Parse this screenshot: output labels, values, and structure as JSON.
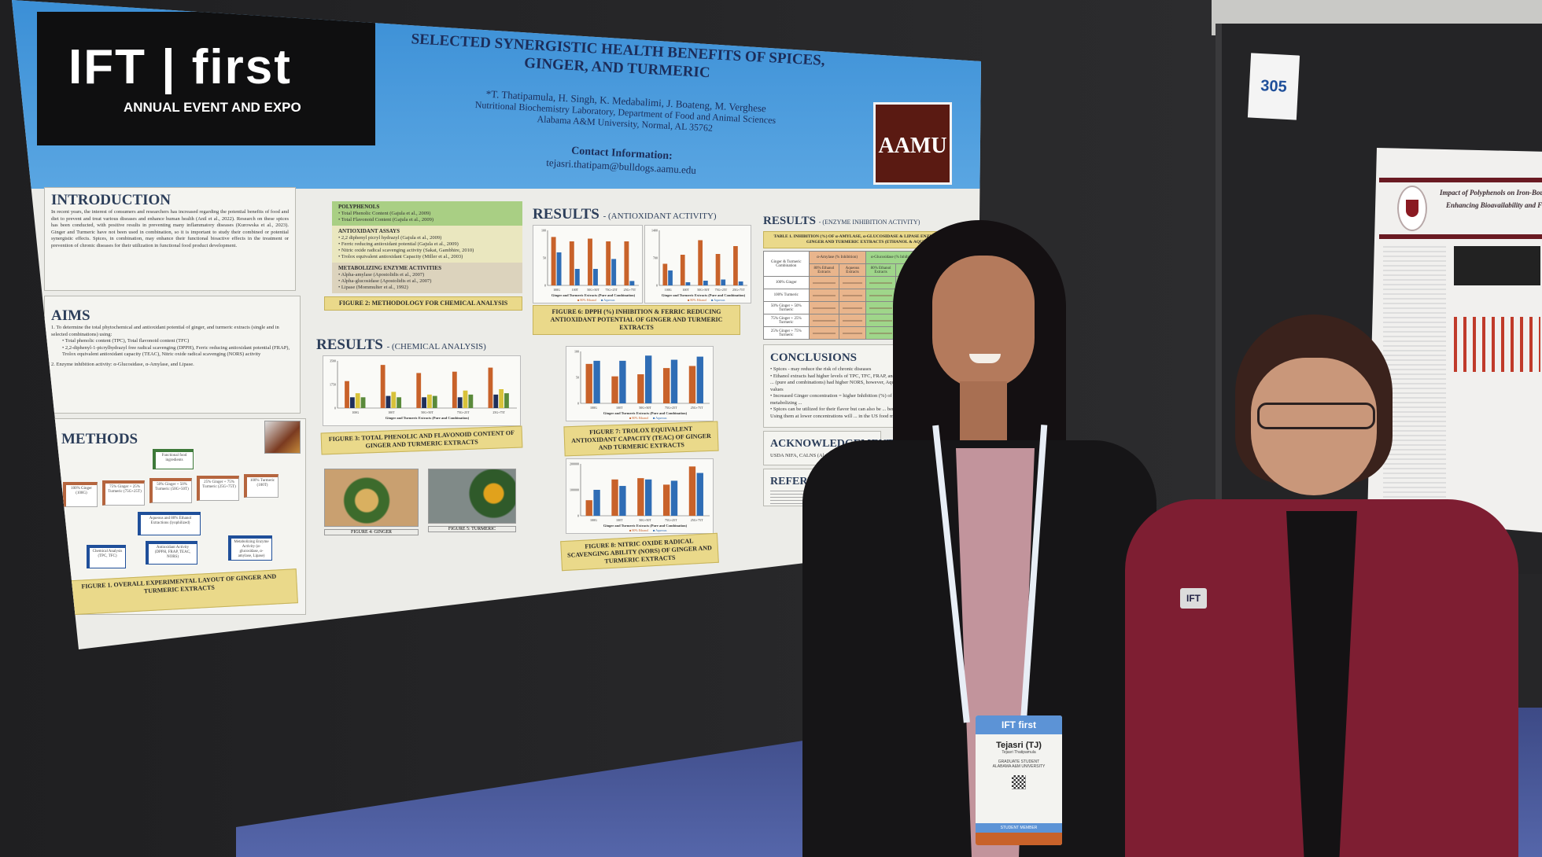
{
  "poster": {
    "logo": {
      "brand": "IFT | first",
      "subtitle": "ANNUAL EVENT AND EXPO"
    },
    "title": "SELECTED SYNERGISTIC HEALTH BENEFITS OF SPICES, GINGER, AND TURMERIC",
    "authors": "*T. Thatipamula, H. Singh, K. Medabalimi, J. Boateng, M. Verghese",
    "affiliation_1": "Nutritional Biochemistry Laboratory, Department of Food and Animal Sciences",
    "affiliation_2": "Alabama A&M University, Normal, AL 35762",
    "contact_label": "Contact Information:",
    "contact_email": "tejasri.thatipam@bulldogs.aamu.edu",
    "institution_logo": "AAMU",
    "introduction": {
      "heading": "INTRODUCTION",
      "body": "In recent years, the interest of consumers and researchers has increased regarding the potential benefits of food and diet to prevent and treat various diseases and enhance human health (Anil et al., 2022). Research on these spices has been conducted, with positive results in preventing many inflammatory diseases (Kurowska et al., 2023). Ginger and Turmeric have not been used in combination, so it is important to study their combined or potential synergistic effects. Spices, in combination, may enhance their functional bioactive effects in the treatment or prevention of chronic diseases for their utilization in functional food product development."
    },
    "aims": {
      "heading": "AIMS",
      "item1": "1. To determine the total phytochemical and antioxidant potential of ginger, and turmeric extracts (single and in selected combinations) using:",
      "sub1": "• Total phenolic content (TPC), Total flavonoid content (TFC)",
      "sub2": "• 2,2-diphenyl-1-picrylhydrazyl free radical scavenging (DPPH), Ferric reducing antioxidant potential (FRAP), Trolox equivalent antioxidant capacity (TEAC), Nitric oxide radical scavenging (NORS) activity",
      "item2": "2. Enzyme inhibition activity: α-Glucosidase, α-Amylase, and Lipase."
    },
    "methodology": {
      "polyphenols": {
        "title": "POLYPHENOLS",
        "items": [
          "• Total Phenolic Content (Gajula et al., 2009)",
          "• Total Flavonoid Content (Gajula et al., 2009)"
        ]
      },
      "antioxidant": {
        "title": "ANTIOXIDANT ASSAYS",
        "items": [
          "• 2,2 diphenyl picryl hydrazyl (Gajula et al., 2009)",
          "• Ferric reducing antioxidant potential (Gajula et al., 2009)",
          "• Nitric oxide radical scavenging activity (Sakat, Gambhire, 2010)",
          "• Trolox equivalent antioxidant Capacity (Miller et al., 2003)"
        ]
      },
      "enzymes": {
        "title": "METABOLIZING ENZYME ACTIVITIES",
        "items": [
          "• Alpha-amylase (Apostolidis et al., 2007)",
          "• Alpha-glucosidase (Apostolidis et al., 2007)",
          "• Lipase (Mommulter et al., 1992)"
        ]
      },
      "caption": "FIGURE 2: METHODOLOGY FOR CHEMICAL ANALYSIS"
    },
    "methods": {
      "heading": "METHODS",
      "nodes": [
        "Functional food ingredients",
        "100% Ginger (100G)",
        "75% Ginger + 25% Turmeric (75G+25T)",
        "50% Ginger + 50% Turmeric (50G+50T)",
        "25% Ginger + 75% Turmeric (25G+75T)",
        "100% Turmeric (100T)",
        "Aqueous and 80% Ethanol Extractions (lyophilized)",
        "Chemical Analysis (TPC, TFC)",
        "Antioxidant Activity (DPPH, FRAP, TEAC, NORS)",
        "Metabolizing Enzyme Activity (α-glucosidase, α-amylase, Lipase)"
      ],
      "caption": "FIGURE 1. OVERALL EXPERIMENTAL LAYOUT OF GINGER AND TURMERIC EXTRACTS"
    },
    "results_chemical": {
      "heading": "RESULTS",
      "subheading": "- (CHEMICAL ANALYSIS)",
      "caption": "FIGURE 3: TOTAL PHENOLIC AND FLAVONOID CONTENT OF GINGER AND TURMERIC EXTRACTS",
      "fig4": "FIGURE 4: GINGER",
      "fig5": "FIGURE 5: TURMERIC"
    },
    "results_antioxidant": {
      "heading": "RESULTS",
      "subheading": "- (ANTIOXIDANT ACTIVITY)",
      "caption6": "FIGURE 6: DPPH (%) INHIBITION & FERRIC REDUCING ANTIOXIDANT POTENTIAL OF GINGER AND TURMERIC EXTRACTS",
      "caption7": "FIGURE 7: TROLOX EQUIVALENT ANTIOXIDANT CAPACITY (TEAC) OF GINGER AND TURMERIC EXTRACTS",
      "caption8": "FIGURE 8: NITRIC OXIDE RADICAL SCAVENGING ABILITY (NORS) OF GINGER AND TURMERIC EXTRACTS"
    },
    "charts": {
      "categories": [
        "100G",
        "100T",
        "50G+50T",
        "75G+25T",
        "25G+75T"
      ],
      "xlabel": "Ginger and Turmeric Extracts (Pure and Combination)",
      "colors": {
        "ethanol": "#c8622a",
        "aqueous": "#2f6db5",
        "tfc_ethanol": "#d8c23a",
        "tfc_aqueous": "#5a8a3a",
        "tpc_aqueous": "#1f2f5a"
      },
      "chemical": {
        "ymax": 3500,
        "series": [
          [
            2000,
            3200,
            2600,
            2700,
            3000
          ],
          [
            800,
            900,
            800,
            800,
            1000
          ],
          [
            1100,
            1200,
            1000,
            1300,
            1400
          ],
          [
            800,
            800,
            900,
            1000,
            1100
          ]
        ],
        "colorKeys": [
          "ethanol",
          "tpc_aqueous",
          "tfc_ethanol",
          "tfc_aqueous"
        ]
      },
      "dpph": {
        "ymax": 100,
        "ylabel": "% DPPH Inhibition",
        "series": [
          [
            88,
            80,
            85,
            80,
            80
          ],
          [
            60,
            30,
            30,
            48,
            8
          ]
        ],
        "colorKeys": [
          "ethanol",
          "aqueous"
        ]
      },
      "frap": {
        "ymax": 1400,
        "series": [
          [
            550,
            780,
            1150,
            800,
            1000
          ],
          [
            380,
            80,
            120,
            150,
            100
          ]
        ],
        "colorKeys": [
          "ethanol",
          "aqueous"
        ]
      },
      "teac": {
        "ymax": 100,
        "ylabel": "TEAC (µM T.E./100g DW)",
        "series": [
          [
            76,
            52,
            56,
            68,
            72
          ],
          [
            82,
            82,
            92,
            84,
            90
          ]
        ],
        "colorKeys": [
          "ethanol",
          "aqueous"
        ]
      },
      "nors": {
        "ymax": 200000,
        "series": [
          [
            60000,
            140000,
            145000,
            120000,
            190000
          ],
          [
            100000,
            115000,
            140000,
            135000,
            165000
          ]
        ],
        "colorKeys": [
          "ethanol",
          "aqueous"
        ]
      },
      "legend": [
        "80% Ethanol",
        "Aqueous"
      ]
    },
    "results_enzyme": {
      "heading": "RESULTS",
      "subheading": "- (ENZYME INHIBITION ACTIVITY)",
      "table_caption": "TABLE 1. INHIBITION (%) OF α-AMYLASE, α-GLUCOSIDASE & LIPASE ENZYME ACTIVITY BY GINGER AND TURMERIC EXTRACTS (ETHANOL & AQUEOUS)",
      "col_first": "Ginger & Turmeric Combination",
      "groups": [
        "α-Amylase (% Inhibition)",
        "α-Glucosidase (% Inhibition)",
        "Lipase (% Inhibition)"
      ],
      "sub": [
        "80% Ethanol Extracts",
        "Aqueous Extracts"
      ],
      "rows": [
        "100% Ginger",
        "100% Turmeric",
        "50% Ginger + 50% Turmeric",
        "75% Ginger + 25% Turmeric",
        "25% Ginger + 75% Turmeric"
      ]
    },
    "conclusions": {
      "heading": "CONCLUSIONS",
      "items": [
        "• Spices - may reduce the risk of chronic diseases",
        "• Ethanol extracts had higher levels of TPC, TFC, FRAP, and DPPH, ... (pure and combinations) had higher NORS, however, Aqueous ... values",
        "• Increased Ginger concentration = higher Inhibition (%) of metabolizing ...",
        "• Spices can be utilized for their flavor but can also be ... benefits. Using them at lower concentrations will ... in the US food market ..."
      ]
    },
    "acknowledgements": {
      "heading": "ACKNOWLEDGEMENTS",
      "body": "USDA NIFA, CALNS (Alabama ..."
    },
    "references": {
      "heading": "REFERENCES"
    }
  },
  "booth_sign": "305",
  "neighbor_poster": {
    "title_1": "Impact of Polyphenols on Iron-Bound Protein ...",
    "title_2": "Enhancing Bioavailability and Functional ..."
  },
  "badge": {
    "event": "IFT first",
    "name": "Tejasri (TJ)",
    "full_name": "Tejasri Thatipamula",
    "role": "GRADUATE STUDENT",
    "org": "ALABAMA A&M UNIVERSITY",
    "member": "STUDENT MEMBER"
  },
  "lapel_pin": "IFT"
}
